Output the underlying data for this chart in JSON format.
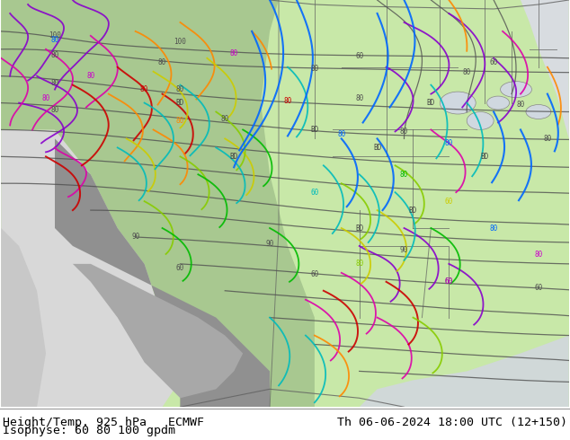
{
  "title_left": "Height/Temp. 925 hPa   ECMWF",
  "title_right": "Th 06-06-2024 18:00 UTC (12+150)",
  "subtitle": "Isophyse: 60 80 100 gpdm",
  "bg_color": "#ffffff",
  "text_color": "#000000",
  "fig_width": 6.34,
  "fig_height": 4.9,
  "dpi": 100,
  "map_green_light": "#c8e8b4",
  "map_green_dark": "#a0b890",
  "map_gray": "#c8c8c8",
  "ocean_color": "#dce8f0"
}
